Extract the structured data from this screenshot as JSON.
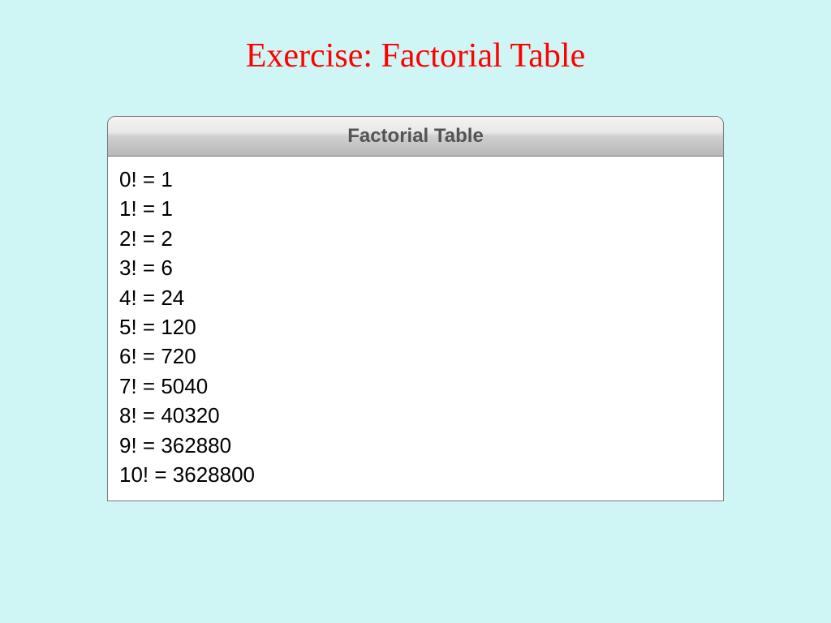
{
  "page": {
    "title": "Exercise: Factorial Table",
    "title_color": "#ff0000",
    "title_fontsize": 42,
    "background_color": "#d0f5f5"
  },
  "window": {
    "title": "Factorial Table",
    "titlebar_gradient_top": "#f4f4f4",
    "titlebar_gradient_bottom": "#b8b8b8",
    "titlebar_text_color": "#545454",
    "border_color": "#7a7a7a",
    "content_background": "#ffffff"
  },
  "factorial": {
    "lines": [
      "0! = 1",
      "1! = 1",
      "2! = 2",
      "3! = 6",
      "4! = 24",
      "5! = 120",
      "6! = 720",
      "7! = 5040",
      "8! = 40320",
      "9! = 362880",
      "10! = 3628800"
    ],
    "text_color": "#000000",
    "fontsize": 26
  }
}
